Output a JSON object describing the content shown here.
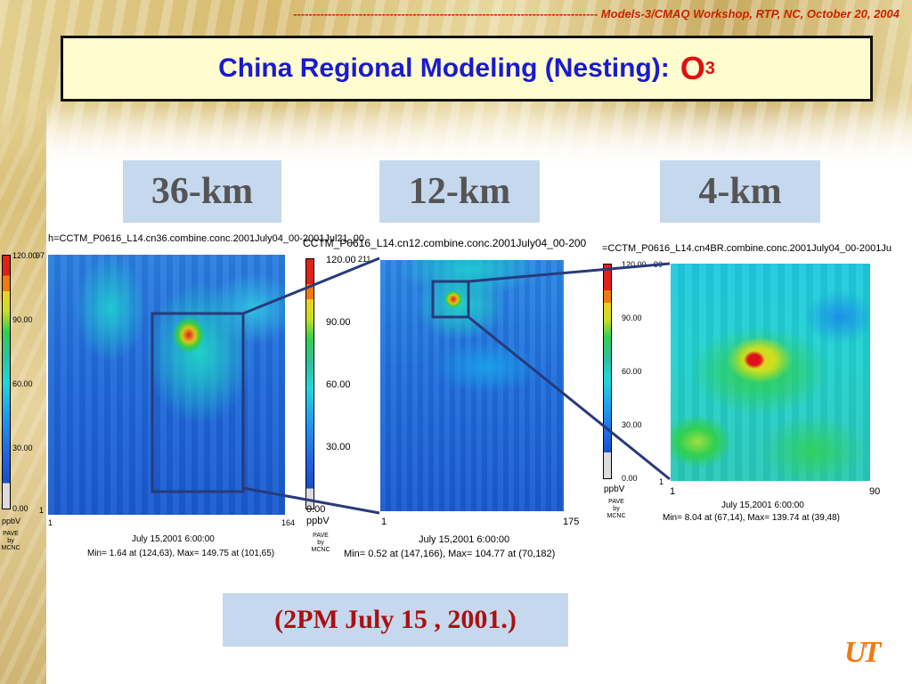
{
  "header": {
    "workshop_text": "------------------------------------------------------------------------------- Models-3/CMAQ Workshop, RTP, NC, October 20, 2004"
  },
  "title": {
    "main": "China Regional Modeling (Nesting):",
    "species": "O",
    "subscript": "3"
  },
  "panels": [
    {
      "resolution": "36-km",
      "filename": "h=CCTM_P0616_L14.cn36.combine.conc.2001July04_00-2001Jul21_00",
      "ticks": [
        "120.00",
        "90.00",
        "60.00",
        "30.00",
        "0.00"
      ],
      "axis_top": "97",
      "axis_y_min": "1",
      "axis_x_min": "1",
      "axis_x_max": "164",
      "units": "ppbV",
      "pave": [
        "PAVE",
        "by",
        "MCNC"
      ],
      "date": "July 15,2001 6:00:00",
      "minmax": "Min=  1.64 at (124,63), Max=  149.75 at (101,65)"
    },
    {
      "resolution": "12-km",
      "filename": "CCTM_P0616_L14.cn12.combine.conc.2001July04_00-200",
      "ticks": [
        "120.00",
        "90.00",
        "60.00",
        "30.00",
        "0.00"
      ],
      "axis_top": "211",
      "axis_x_min": "1",
      "axis_x_max": "175",
      "units": "ppbV",
      "pave": [
        "PAVE",
        "by",
        "MCNC"
      ],
      "date": "July 15,2001 6:00:00",
      "minmax": "Min=    0.52 at (147,166), Max=  104.77 at (70,182)"
    },
    {
      "resolution": "4-km",
      "filename": "=CCTM_P0616_L14.cn4BR.combine.conc.2001July04_00-2001Ju",
      "ticks": [
        "120.00",
        "90.00",
        "60.00",
        "30.00",
        "0.00"
      ],
      "axis_top": "90",
      "axis_y_min": "1",
      "axis_x_min": "1",
      "axis_x_max": "90",
      "units": "ppbV",
      "pave": [
        "PAVE",
        "by",
        "MCNC"
      ],
      "date": "July 15,2001 6:00:00",
      "minmax": "Min=    8.04 at (67,14), Max=  139.74 at (39,48)"
    }
  ],
  "caption": "(2PM July 15 , 2001.)",
  "logo": "UT",
  "colors": {
    "title_blue": "#1a1ad0",
    "title_red": "#e01010",
    "label_bg": "#c6d8ee",
    "caption_red": "#aa1111",
    "nest_box": "#283a7a",
    "logo_orange": "#f07a12"
  }
}
